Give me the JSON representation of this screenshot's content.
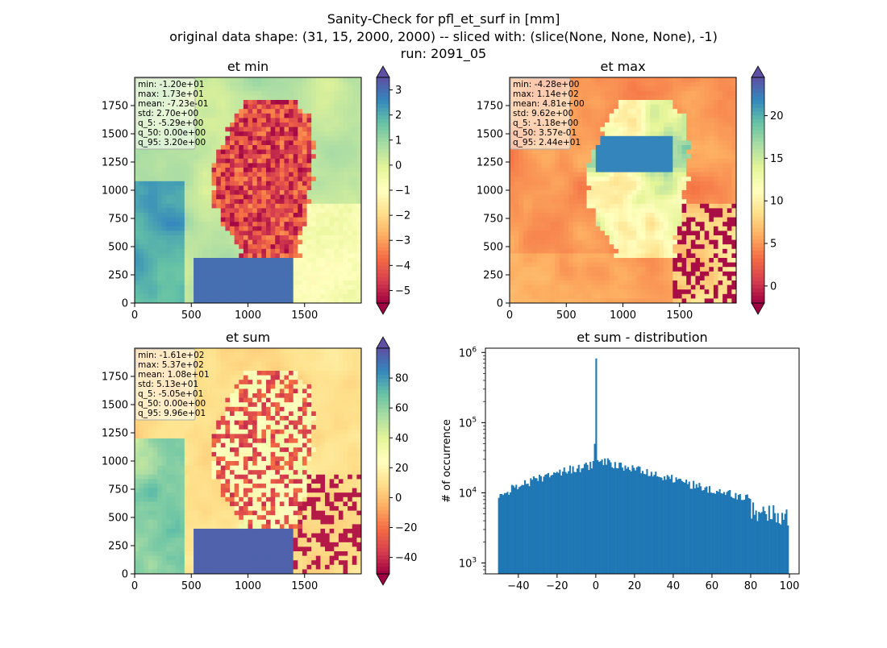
{
  "figure": {
    "title_lines": [
      "Sanity-Check for pfl_et_surf in [mm]",
      "original data shape: (31, 15, 2000, 2000) -- sliced with: (slice(None, None, None), -1)",
      "run: 2091_05"
    ]
  },
  "panels": [
    {
      "title": "et min",
      "stats": [
        "min: -1.20e+01",
        "max: 1.73e+01",
        "mean: -7.23e-01",
        "std: 2.70e+00",
        "q_5: -5.29e+00",
        "q_50: 0.00e+00",
        "q_95: 3.20e+00"
      ],
      "x_ticks": [
        "0",
        "500",
        "1000",
        "1500"
      ],
      "y_ticks": [
        "0",
        "250",
        "500",
        "750",
        "1000",
        "1250",
        "1500",
        "1750"
      ],
      "cbar_ticks": [
        "−5",
        "−4",
        "−3",
        "−2",
        "−1",
        "0",
        "1",
        "2",
        "3"
      ],
      "cbar_range": [
        -5.5,
        3.5
      ]
    },
    {
      "title": "et max",
      "stats": [
        "min: -4.28e+00",
        "max: 1.14e+02",
        "mean: 4.81e+00",
        "std: 9.62e+00",
        "q_5: -1.18e+00",
        "q_50: 3.57e-01",
        "q_95: 2.44e+01"
      ],
      "x_ticks": [
        "0",
        "500",
        "1000",
        "1500"
      ],
      "y_ticks": [
        "0",
        "250",
        "500",
        "750",
        "1000",
        "1250",
        "1500",
        "1750"
      ],
      "cbar_ticks": [
        "0",
        "5",
        "10",
        "15",
        "20"
      ],
      "cbar_range": [
        -2,
        24.5
      ]
    },
    {
      "title": "et sum",
      "stats": [
        "min: -1.61e+02",
        "max: 5.37e+02",
        "mean: 1.08e+01",
        "std: 5.13e+01",
        "q_5: -5.05e+01",
        "q_50: 0.00e+00",
        "q_95: 9.96e+01"
      ],
      "x_ticks": [
        "0",
        "500",
        "1000",
        "1500"
      ],
      "y_ticks": [
        "0",
        "250",
        "500",
        "750",
        "1000",
        "1250",
        "1500",
        "1750"
      ],
      "cbar_ticks": [
        "−40",
        "−20",
        "0",
        "20",
        "40",
        "60",
        "80"
      ],
      "cbar_range": [
        -51,
        100
      ]
    }
  ],
  "chart_data": {
    "type": "bar",
    "title": "et sum - distribution",
    "xlabel": "",
    "ylabel": "# of occurrence",
    "y_scale": "log",
    "x_ticks": [
      "−40",
      "−20",
      "0",
      "20",
      "40",
      "60",
      "80",
      "100"
    ],
    "y_ticks": [
      "10^3",
      "10^4",
      "10^5",
      "10^6"
    ],
    "xlim": [
      -57,
      105
    ],
    "ylim": [
      700,
      1150000
    ],
    "color": "#1f77b4",
    "bin_range": [
      -50.5,
      99.6
    ],
    "bins": 200,
    "peaks": [
      {
        "x": 0,
        "count": 820000
      },
      {
        "x": -0.75,
        "count": 50000
      }
    ]
  }
}
